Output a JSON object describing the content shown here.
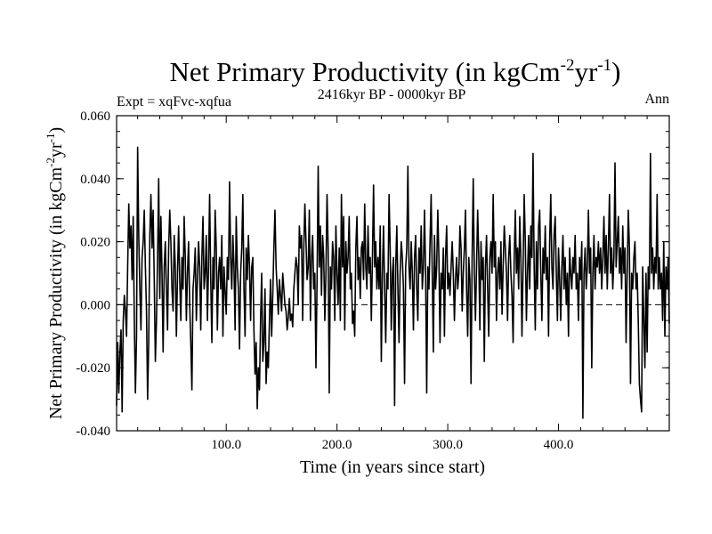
{
  "chart_data": {
    "type": "line",
    "title_main": "Net Primary Productivity (in kgCm",
    "title_sup1": "-2",
    "title_mid": "yr",
    "title_sup2": "-1",
    "title_end": ")",
    "subtitle": "2416kyr BP - 0000kyr BP",
    "expt_label": "Expt = xqFvc-xqfua",
    "season_label": "Ann",
    "xlabel": "Time (in years since start)",
    "ylabel_main": "Net Primary Productivity (in kgCm",
    "ylabel_sup1": "-2",
    "ylabel_mid": "yr",
    "ylabel_sup2": "-1",
    "ylabel_end": ")",
    "xlim": [
      1,
      500
    ],
    "ylim": [
      -0.04,
      0.06
    ],
    "xticks": [
      100,
      200,
      300,
      400
    ],
    "xtick_labels": [
      "100.0",
      "200.0",
      "300.0",
      "400.0"
    ],
    "yticks": [
      -0.04,
      -0.02,
      0.0,
      0.02,
      0.04,
      0.06
    ],
    "ytick_labels": [
      "-0.040",
      "-0.020",
      "0.000",
      "0.020",
      "0.040",
      "0.060"
    ],
    "zero_line": 0.0,
    "series": [
      {
        "name": "Ann",
        "x_start": 1,
        "x_step": 1,
        "values": [
          -0.032,
          -0.012,
          -0.028,
          -0.015,
          -0.008,
          -0.034,
          -0.005,
          0.003,
          -0.002,
          -0.01,
          0.012,
          0.032,
          0.018,
          0.025,
          0.008,
          0.028,
          -0.005,
          -0.028,
          -0.01,
          0.05,
          0.022,
          0.005,
          -0.008,
          0.015,
          0.02,
          0.03,
          0.012,
          -0.002,
          -0.03,
          -0.012,
          0.022,
          0.035,
          0.018,
          0.03,
          0.008,
          -0.018,
          -0.005,
          0.015,
          0.04,
          0.002,
          0.028,
          0.01,
          -0.015,
          0.012,
          0.02,
          0.005,
          -0.008,
          0.018,
          0.03,
          0.02,
          0.005,
          -0.002,
          0.022,
          0.012,
          -0.01,
          0.01,
          0.025,
          0.008,
          -0.005,
          0.015,
          0.005,
          0.028,
          0.015,
          -0.005,
          0.01,
          0.02,
          0.0,
          -0.012,
          -0.027,
          0.005,
          0.01,
          0.018,
          -0.005,
          0.008,
          0.02,
          0.012,
          -0.008,
          0.015,
          0.028,
          0.005,
          0.01,
          0.022,
          -0.005,
          0.012,
          0.035,
          0.008,
          -0.012,
          0.015,
          0.005,
          0.03,
          0.018,
          -0.008,
          0.01,
          0.015,
          0.005,
          0.022,
          -0.01,
          0.012,
          0.004,
          -0.003,
          0.015,
          0.008,
          0.039,
          0.015,
          0.005,
          0.022,
          0.012,
          -0.008,
          0.028,
          0.012,
          0.005,
          -0.014,
          0.01,
          0.018,
          0.035,
          0.005,
          -0.01,
          0.018,
          0.008,
          0.022,
          0.012,
          -0.005,
          0.012,
          0.015,
          -0.008,
          -0.022,
          -0.012,
          -0.033,
          -0.02,
          -0.027,
          -0.005,
          0.01,
          -0.018,
          -0.012,
          0.005,
          -0.025,
          -0.015,
          -0.02,
          -0.005,
          0.008,
          -0.01,
          0.003,
          0.018,
          0.03,
          0.012,
          0.005,
          -0.003,
          0.008,
          0.003,
          -0.002,
          0.01,
          0.005,
          0.0,
          -0.002,
          -0.008,
          -0.004,
          0.002,
          -0.005,
          -0.003,
          -0.007,
          0.005,
          0.01,
          0.015,
          0.012,
          0.0,
          0.025,
          0.018,
          0.022,
          -0.005,
          0.018,
          0.032,
          0.02,
          0.008,
          0.012,
          0.03,
          -0.005,
          0.015,
          0.022,
          0.005,
          0.01,
          -0.02,
          0.008,
          0.044,
          0.012,
          0.025,
          0.003,
          0.022,
          0.015,
          -0.005,
          0.01,
          0.035,
          0.018,
          -0.028,
          0.012,
          0.005,
          0.02,
          0.015,
          -0.005,
          0.025,
          0.01,
          0.0,
          0.018,
          -0.005,
          0.035,
          0.012,
          0.028,
          -0.008,
          0.02,
          0.01,
          0.015,
          0.028,
          0.005,
          0.01,
          -0.006,
          -0.002,
          -0.01,
          0.018,
          0.028,
          0.008,
          0.015,
          0.002,
          0.018,
          0.02,
          0.008,
          0.032,
          0.012,
          0.005,
          0.025,
          0.01,
          0.015,
          -0.005,
          0.015,
          0.038,
          0.012,
          0.02,
          0.005,
          0.015,
          0.005,
          0.025,
          -0.018,
          0.01,
          0.025,
          0.005,
          -0.012,
          0.01,
          0.005,
          0.035,
          0.018,
          -0.008,
          0.01,
          0.015,
          -0.032,
          0.012,
          0.025,
          0.005,
          -0.012,
          0.01,
          0.02,
          0.015,
          0.005,
          -0.025,
          0.012,
          0.018,
          0.044,
          0.012,
          0.005,
          0.02,
          0.01,
          -0.008,
          0.015,
          0.022,
          0.005,
          -0.005,
          0.018,
          0.01,
          0.025,
          0.005,
          0.012,
          0.03,
          0.01,
          -0.028,
          0.012,
          0.005,
          0.02,
          0.035,
          0.01,
          -0.015,
          0.022,
          0.005,
          0.012,
          0.03,
          0.015,
          -0.012,
          0.01,
          0.005,
          0.018,
          -0.01,
          0.015,
          0.025,
          0.005,
          0.01,
          0.003,
          0.012,
          0.02,
          0.01,
          -0.005,
          0.008,
          0.015,
          0.005,
          0.01,
          0.025,
          0.018,
          -0.002,
          0.01,
          0.018,
          0.03,
          0.005,
          -0.01,
          0.015,
          0.008,
          -0.025,
          0.015,
          0.04,
          0.01,
          -0.005,
          0.012,
          0.03,
          0.015,
          -0.008,
          0.02,
          0.008,
          0.015,
          -0.018,
          0.012,
          0.022,
          0.005,
          -0.01,
          0.015,
          0.02,
          0.01,
          0.035,
          0.012,
          0.02,
          -0.005,
          0.01,
          0.015,
          0.005,
          0.02,
          -0.003,
          0.012,
          0.025,
          0.018,
          0.01,
          -0.005,
          0.015,
          0.022,
          0.01,
          0.003,
          -0.012,
          0.015,
          0.03,
          0.01,
          0.018,
          0.005,
          0.028,
          0.015,
          -0.01,
          0.012,
          0.035,
          0.02,
          -0.005,
          0.01,
          0.022,
          0.005,
          0.025,
          0.015,
          0.048,
          0.012,
          -0.008,
          0.02,
          0.005,
          0.025,
          0.03,
          0.01,
          -0.005,
          0.018,
          0.01,
          0.025,
          0.008,
          0.015,
          -0.01,
          0.02,
          0.035,
          0.012,
          0.005,
          0.022,
          0.028,
          0.01,
          -0.005,
          0.018,
          0.008,
          -0.005,
          0.012,
          0.022,
          0.005,
          0.015,
          0.0,
          0.01,
          -0.01,
          0.018,
          0.01,
          0.005,
          0.015,
          0.01,
          0.022,
          0.005,
          0.01,
          -0.005,
          0.015,
          0.008,
          0.02,
          -0.036,
          0.01,
          0.018,
          0.005,
          0.012,
          0.03,
          0.01,
          0.018,
          -0.02,
          0.01,
          0.022,
          0.005,
          0.015,
          0.012,
          0.02,
          0.01,
          0.018,
          0.005,
          0.015,
          0.028,
          0.01,
          0.022,
          0.005,
          0.018,
          0.035,
          0.01,
          0.018,
          0.005,
          0.015,
          0.045,
          0.012,
          0.02,
          0.028,
          0.01,
          0.018,
          0.005,
          0.025,
          0.01,
          0.018,
          -0.012,
          0.01,
          0.03,
          0.018,
          -0.025,
          0.01,
          0.005,
          0.015,
          0.02,
          0.005,
          0.01,
          -0.005,
          -0.025,
          -0.03,
          -0.034,
          0.012,
          -0.005,
          -0.02,
          0.01,
          -0.015,
          0.012,
          0.005,
          0.048,
          0.01,
          0.018,
          0.005,
          0.015,
          0.01,
          0.035,
          0.005,
          0.015,
          0.005,
          0.01,
          -0.005,
          0.02,
          -0.01,
          0.012,
          0.005,
          0.015,
          -0.006
        ]
      }
    ]
  }
}
